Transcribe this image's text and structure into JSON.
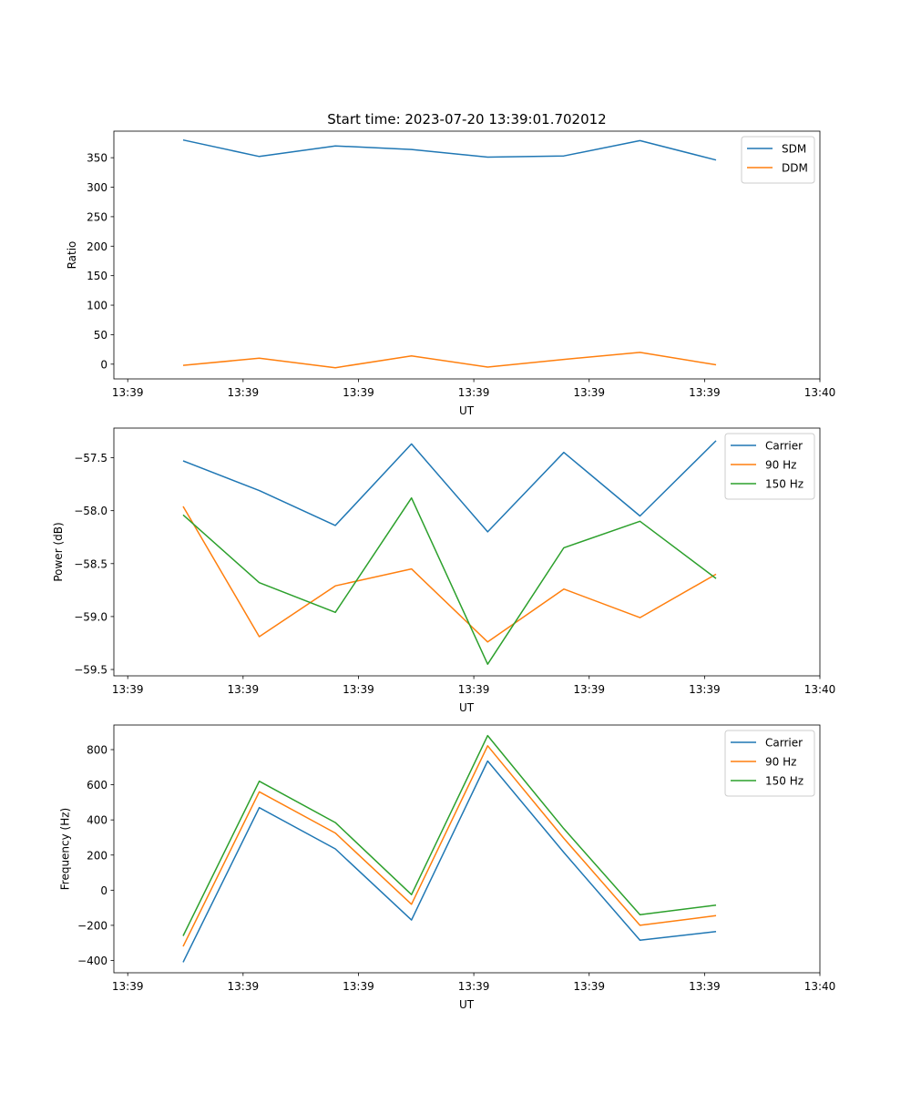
{
  "figure": {
    "title": "Start time: 2023-07-20 13:39:01.702012"
  },
  "colors": {
    "blue": "#1f77b4",
    "orange": "#ff7f0e",
    "green": "#2ca02c"
  },
  "chart_data": [
    {
      "type": "line",
      "title": "Start time: 2023-07-20 13:39:01.702012",
      "xlabel": "UT",
      "ylabel": "Ratio",
      "x": [
        1.5,
        3.15,
        4.8,
        6.45,
        8.1,
        9.75,
        11.4,
        13.05
      ],
      "xlim": [
        0,
        15.3
      ],
      "xticks": [
        0.3,
        2.8,
        5.3,
        7.8,
        10.3,
        12.8,
        15.3
      ],
      "xtick_labels": [
        "13:39",
        "13:39",
        "13:39",
        "13:39",
        "13:39",
        "13:39",
        "13:40"
      ],
      "ylim": [
        -25,
        395
      ],
      "yticks": [
        0,
        50,
        100,
        150,
        200,
        250,
        300,
        350
      ],
      "ytick_labels": [
        "0",
        "50",
        "100",
        "150",
        "200",
        "250",
        "300",
        "350"
      ],
      "legend_position": "top-right",
      "series": [
        {
          "name": "SDM",
          "color": "#1f77b4",
          "values": [
            380,
            352,
            370,
            364,
            351,
            353,
            379,
            346
          ]
        },
        {
          "name": "DDM",
          "color": "#ff7f0e",
          "values": [
            -2,
            10,
            -6,
            14,
            -5,
            8,
            20,
            -1
          ]
        }
      ]
    },
    {
      "type": "line",
      "xlabel": "UT",
      "ylabel": "Power (dB)",
      "x": [
        1.5,
        3.15,
        4.8,
        6.45,
        8.1,
        9.75,
        11.4,
        13.05
      ],
      "xlim": [
        0,
        15.3
      ],
      "xticks": [
        0.3,
        2.8,
        5.3,
        7.8,
        10.3,
        12.8,
        15.3
      ],
      "xtick_labels": [
        "13:39",
        "13:39",
        "13:39",
        "13:39",
        "13:39",
        "13:39",
        "13:40"
      ],
      "ylim": [
        -59.56,
        -57.22
      ],
      "yticks": [
        -59.5,
        -59.0,
        -58.5,
        -58.0,
        -57.5
      ],
      "ytick_labels": [
        "−59.5",
        "−59.0",
        "−58.5",
        "−58.0",
        "−57.5"
      ],
      "legend_position": "top-right",
      "series": [
        {
          "name": "Carrier",
          "color": "#1f77b4",
          "values": [
            -57.53,
            -57.81,
            -58.14,
            -57.37,
            -58.2,
            -57.45,
            -58.05,
            -57.34
          ]
        },
        {
          "name": "90 Hz",
          "color": "#ff7f0e",
          "values": [
            -57.96,
            -59.19,
            -58.71,
            -58.55,
            -59.24,
            -58.74,
            -59.01,
            -58.6
          ]
        },
        {
          "name": "150 Hz",
          "color": "#2ca02c",
          "values": [
            -58.04,
            -58.68,
            -58.96,
            -57.88,
            -59.45,
            -58.35,
            -58.1,
            -58.64
          ]
        }
      ]
    },
    {
      "type": "line",
      "xlabel": "UT",
      "ylabel": "Frequency (Hz)",
      "x": [
        1.5,
        3.15,
        4.8,
        6.45,
        8.1,
        9.75,
        11.4,
        13.05
      ],
      "xlim": [
        0,
        15.3
      ],
      "xticks": [
        0.3,
        2.8,
        5.3,
        7.8,
        10.3,
        12.8,
        15.3
      ],
      "xtick_labels": [
        "13:39",
        "13:39",
        "13:39",
        "13:39",
        "13:39",
        "13:39",
        "13:40"
      ],
      "ylim": [
        -470,
        940
      ],
      "yticks": [
        -400,
        -200,
        0,
        200,
        400,
        600,
        800
      ],
      "ytick_labels": [
        "−400",
        "−200",
        "0",
        "200",
        "400",
        "600",
        "800"
      ],
      "legend_position": "top-right",
      "series": [
        {
          "name": "Carrier",
          "color": "#1f77b4",
          "values": [
            -410,
            470,
            235,
            -170,
            735,
            215,
            -285,
            -235
          ]
        },
        {
          "name": "90 Hz",
          "color": "#ff7f0e",
          "values": [
            -320,
            560,
            325,
            -80,
            822,
            295,
            -200,
            -145
          ]
        },
        {
          "name": "150 Hz",
          "color": "#2ca02c",
          "values": [
            -260,
            620,
            385,
            -25,
            880,
            350,
            -140,
            -85
          ]
        }
      ]
    }
  ]
}
